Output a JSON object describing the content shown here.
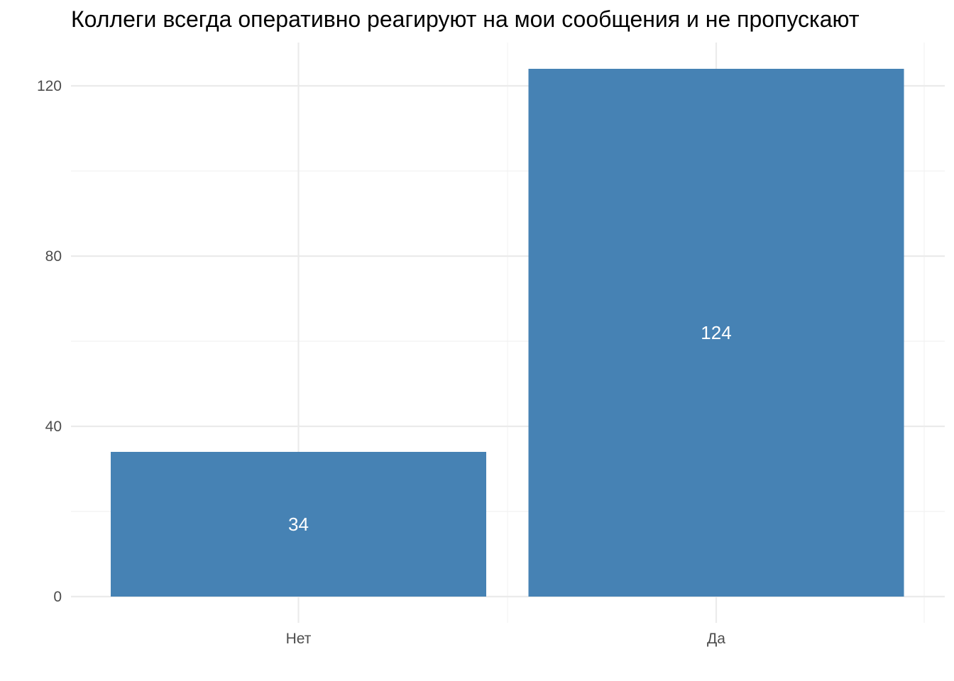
{
  "chart_data": {
    "type": "bar",
    "title": "Коллеги всегда оперативно реагируют на мои сообщения и не пропускают",
    "xlabel": "",
    "ylabel": "",
    "categories": [
      "Нет",
      "Да"
    ],
    "values": [
      34,
      124
    ],
    "data_labels": [
      "34",
      "124"
    ],
    "ylim": [
      0,
      130
    ],
    "y_ticks": [
      0,
      40,
      80,
      120
    ],
    "y_tick_labels": [
      "0",
      "40",
      "80",
      "120"
    ],
    "grid": true,
    "legend": "none",
    "colors": {
      "bar": "#4682b4",
      "grid_major": "#ebebeb",
      "grid_minor": "#f2f2f2",
      "data_label": "#ffffff"
    }
  }
}
